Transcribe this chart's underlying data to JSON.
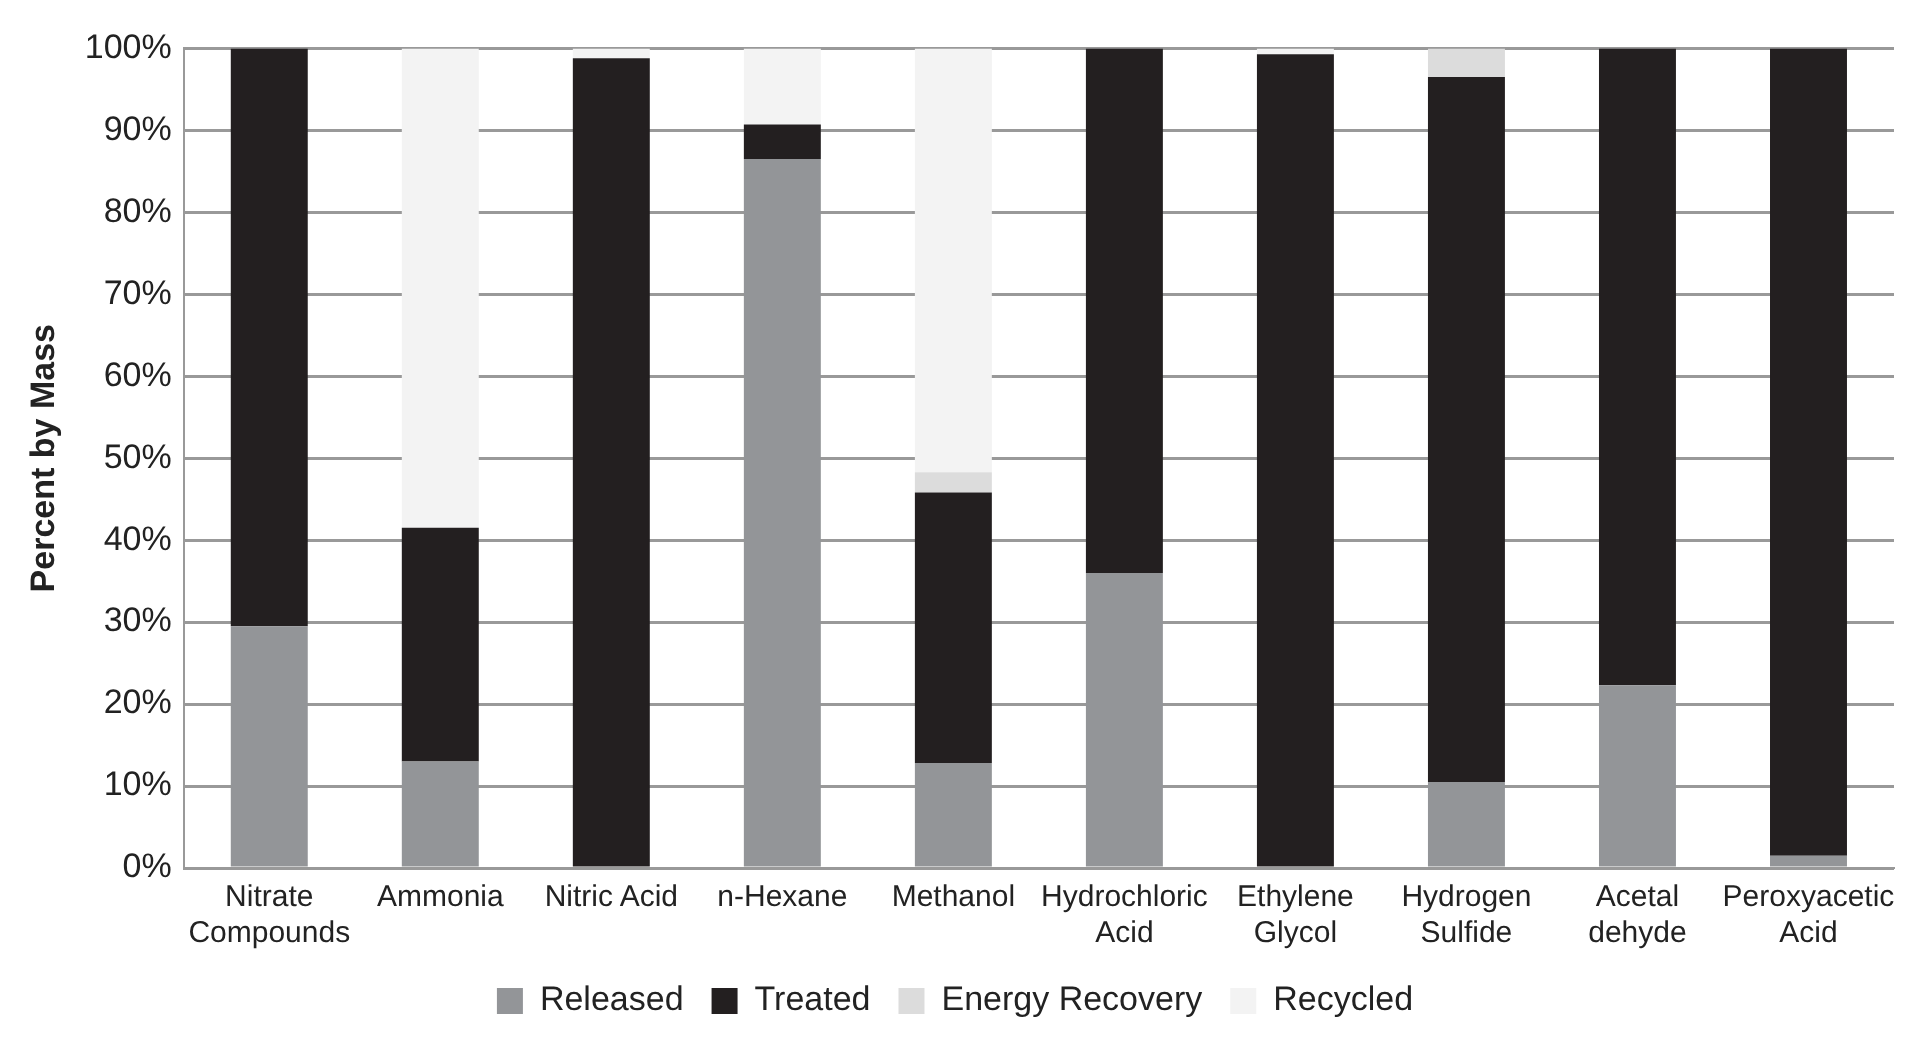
{
  "chart_data": {
    "type": "bar",
    "stacked": true,
    "ylabel": "Percent by Mass",
    "categories": [
      "Nitrate Compounds",
      "Ammonia",
      "Nitric Acid",
      "n-Hexane",
      "Methanol",
      "Hydrochloric Acid",
      "Ethylene Glycol",
      "Hydrogen Sulfide",
      "Acetal dehyde",
      "Peroxyacetic Acid"
    ],
    "series": [
      {
        "name": "Released",
        "color": "#939598",
        "values": [
          29.5,
          13,
          0,
          86.5,
          12.8,
          36,
          0,
          10.5,
          22.3,
          1.5
        ]
      },
      {
        "name": "Treated",
        "color": "#231f20",
        "values": [
          70.5,
          28.5,
          98.8,
          4.2,
          33,
          64,
          99.3,
          86,
          77.7,
          98.5
        ]
      },
      {
        "name": "Energy Recovery",
        "color": "#dcdcdc",
        "values": [
          0,
          0,
          0,
          0,
          2.5,
          0,
          0,
          3.5,
          0,
          0
        ]
      },
      {
        "name": "Recycled",
        "color": "#f3f3f3",
        "values": [
          0,
          58.5,
          1.2,
          9.3,
          51.7,
          0,
          0.7,
          0,
          0,
          0
        ]
      }
    ],
    "ylim": [
      0,
      100
    ],
    "yticks": [
      {
        "value": 0,
        "label": "0%"
      },
      {
        "value": 10,
        "label": "10%"
      },
      {
        "value": 20,
        "label": "20%"
      },
      {
        "value": 30,
        "label": "30%"
      },
      {
        "value": 40,
        "label": "40%"
      },
      {
        "value": 50,
        "label": "50%"
      },
      {
        "value": 60,
        "label": "60%"
      },
      {
        "value": 70,
        "label": "70%"
      },
      {
        "value": 80,
        "label": "80%"
      },
      {
        "value": 90,
        "label": "90%"
      },
      {
        "value": 100,
        "label": "100%"
      }
    ],
    "grid": "y",
    "legend": "bottom"
  }
}
